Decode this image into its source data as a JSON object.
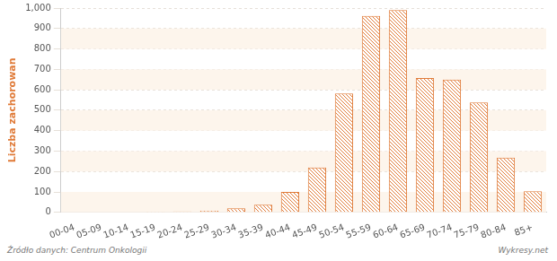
{
  "chart_data": {
    "type": "bar",
    "y_label": "Liczba zachorowan",
    "categories": [
      "00-04",
      "05-09",
      "10-14",
      "15-19",
      "20-24",
      "25-29",
      "30-34",
      "35-39",
      "40-44",
      "45-49",
      "50-54",
      "55-59",
      "60-64",
      "65-69",
      "70-74",
      "75-79",
      "80-84",
      "85+"
    ],
    "values": [
      0,
      0,
      0,
      1,
      4,
      8,
      20,
      38,
      100,
      220,
      582,
      962,
      990,
      658,
      650,
      538,
      268,
      103
    ],
    "color": "#e07b39",
    "ylim": [
      0,
      1000
    ],
    "yticks": [
      0,
      100,
      200,
      300,
      400,
      500,
      600,
      700,
      800,
      900,
      1000
    ],
    "grid": true,
    "annotations": [
      "Źródło danych: Centrum Onkologii",
      "Wykresy.net"
    ]
  }
}
